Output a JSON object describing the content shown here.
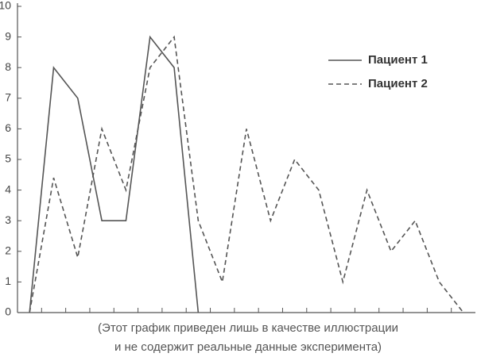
{
  "chart_data": {
    "type": "line",
    "categories": [
      null,
      null,
      null,
      null,
      null,
      null,
      null,
      null,
      null,
      null,
      null,
      null,
      null,
      null,
      null,
      null,
      null,
      null,
      null
    ],
    "series": [
      {
        "name": "Пациент 1",
        "color": "#555555",
        "line_style": "solid",
        "values": [
          0,
          8,
          7,
          3,
          3,
          9,
          8,
          0,
          null,
          null,
          null,
          null,
          null,
          null,
          null,
          null,
          null,
          null,
          null
        ]
      },
      {
        "name": "Пациент 2",
        "color": "#555555",
        "line_style": "dashed",
        "values": [
          0,
          4.4,
          1.8,
          6,
          4,
          8,
          9,
          3,
          1,
          6,
          3,
          5,
          4,
          1,
          4,
          2,
          3,
          1,
          0
        ]
      }
    ],
    "ylim": [
      0,
      10
    ],
    "yticks": [
      0,
      1,
      2,
      3,
      4,
      5,
      6,
      7,
      8,
      9,
      10
    ],
    "legend": "upper right",
    "note": [
      "(Этот график приведен лишь в качестве иллюстрации",
      "и не содержит реальные данные эксперимента)"
    ]
  }
}
